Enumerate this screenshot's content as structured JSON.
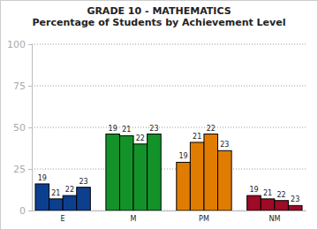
{
  "chart_data": {
    "type": "bar",
    "title": "GRADE 10 - MATHEMATICS",
    "subtitle": "Percentage of Students by Achievement Level",
    "categories": [
      "E",
      "M",
      "PM",
      "NM"
    ],
    "colors": [
      "#0d3f8f",
      "#14922a",
      "#e07d00",
      "#9e0b25"
    ],
    "series": [
      {
        "name": "19",
        "values": [
          16,
          46,
          29,
          9
        ]
      },
      {
        "name": "21",
        "values": [
          7,
          45,
          41,
          7
        ]
      },
      {
        "name": "22",
        "values": [
          9,
          40,
          46,
          6
        ]
      },
      {
        "name": "23",
        "values": [
          14,
          46,
          36,
          3
        ]
      }
    ],
    "ylim": [
      0,
      100
    ],
    "yticks": [
      0,
      25,
      50,
      75,
      100
    ],
    "grid": true
  }
}
